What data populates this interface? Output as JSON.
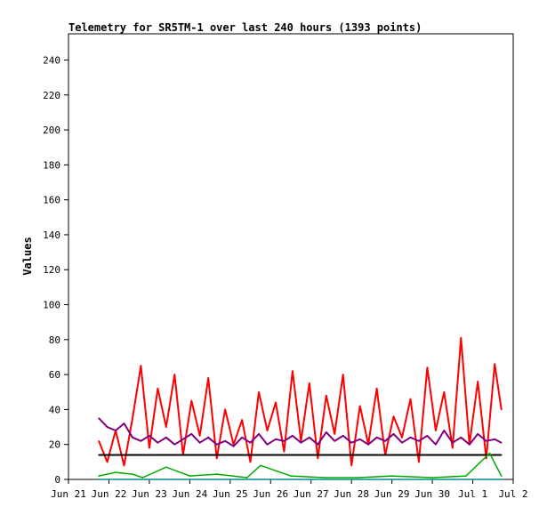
{
  "chart_data": {
    "type": "line",
    "title": "Telemetry for SR5TM-1 over last 240 hours (1393 points)",
    "xlabel": "",
    "ylabel": "Values",
    "ylim": [
      0,
      255
    ],
    "xlim": [
      "2024-06-21",
      "2024-07-02"
    ],
    "x_ticks": [
      "Jun 21",
      "Jun 22",
      "Jun 23",
      "Jun 24",
      "Jun 25",
      "Jun 26",
      "Jun 27",
      "Jun 28",
      "Jun 29",
      "Jun 30",
      "Jul 1",
      "Jul 2"
    ],
    "y_ticks": [
      0,
      20,
      40,
      60,
      80,
      100,
      120,
      140,
      160,
      180,
      200,
      220,
      240
    ],
    "grid": false,
    "legend": "none",
    "series": [
      {
        "color": "#ff0000",
        "x": [
          "2024-06-21T18:00",
          "2024-06-21T23:00",
          "2024-06-22T04:00",
          "2024-06-22T09:00",
          "2024-06-22T14:00",
          "2024-06-22T19:00",
          "2024-06-23T00:00",
          "2024-06-23T05:00",
          "2024-06-23T10:00",
          "2024-06-23T15:00",
          "2024-06-23T20:00",
          "2024-06-24T01:00",
          "2024-06-24T06:00",
          "2024-06-24T11:00",
          "2024-06-24T16:00",
          "2024-06-24T21:00",
          "2024-06-25T02:00",
          "2024-06-25T07:00",
          "2024-06-25T12:00",
          "2024-06-25T17:00",
          "2024-06-25T22:00",
          "2024-06-26T03:00",
          "2024-06-26T08:00",
          "2024-06-26T13:00",
          "2024-06-26T18:00",
          "2024-06-26T23:00",
          "2024-06-27T04:00",
          "2024-06-27T09:00",
          "2024-06-27T14:00",
          "2024-06-27T19:00",
          "2024-06-28T00:00",
          "2024-06-28T05:00",
          "2024-06-28T10:00",
          "2024-06-28T15:00",
          "2024-06-28T20:00",
          "2024-06-29T01:00",
          "2024-06-29T06:00",
          "2024-06-29T11:00",
          "2024-06-29T16:00",
          "2024-06-29T21:00",
          "2024-06-30T02:00",
          "2024-06-30T07:00",
          "2024-06-30T12:00",
          "2024-06-30T17:00",
          "2024-06-30T22:00",
          "2024-07-01T03:00",
          "2024-07-01T08:00",
          "2024-07-01T13:00",
          "2024-07-01T17:00"
        ],
        "y": [
          22,
          10,
          28,
          8,
          35,
          65,
          18,
          52,
          30,
          60,
          14,
          45,
          25,
          58,
          12,
          40,
          20,
          34,
          10,
          50,
          28,
          44,
          16,
          62,
          22,
          55,
          12,
          48,
          26,
          60,
          8,
          42,
          20,
          52,
          14,
          36,
          24,
          46,
          10,
          64,
          28,
          50,
          18,
          81,
          20,
          56,
          12,
          66,
          40
        ]
      },
      {
        "color": "#7f007f",
        "x": [
          "2024-06-21T18:00",
          "2024-06-21T23:00",
          "2024-06-22T04:00",
          "2024-06-22T09:00",
          "2024-06-22T14:00",
          "2024-06-22T19:00",
          "2024-06-23T00:00",
          "2024-06-23T05:00",
          "2024-06-23T10:00",
          "2024-06-23T15:00",
          "2024-06-23T20:00",
          "2024-06-24T01:00",
          "2024-06-24T06:00",
          "2024-06-24T11:00",
          "2024-06-24T16:00",
          "2024-06-24T21:00",
          "2024-06-25T02:00",
          "2024-06-25T07:00",
          "2024-06-25T12:00",
          "2024-06-25T17:00",
          "2024-06-25T22:00",
          "2024-06-26T03:00",
          "2024-06-26T08:00",
          "2024-06-26T13:00",
          "2024-06-26T18:00",
          "2024-06-26T23:00",
          "2024-06-27T04:00",
          "2024-06-27T09:00",
          "2024-06-27T14:00",
          "2024-06-27T19:00",
          "2024-06-28T00:00",
          "2024-06-28T05:00",
          "2024-06-28T10:00",
          "2024-06-28T15:00",
          "2024-06-28T20:00",
          "2024-06-29T01:00",
          "2024-06-29T06:00",
          "2024-06-29T11:00",
          "2024-06-29T16:00",
          "2024-06-29T21:00",
          "2024-06-30T02:00",
          "2024-06-30T07:00",
          "2024-06-30T12:00",
          "2024-06-30T17:00",
          "2024-06-30T22:00",
          "2024-07-01T03:00",
          "2024-07-01T08:00",
          "2024-07-01T13:00",
          "2024-07-01T17:00"
        ],
        "y": [
          35,
          30,
          28,
          32,
          24,
          22,
          25,
          21,
          24,
          20,
          23,
          26,
          21,
          24,
          20,
          22,
          19,
          24,
          21,
          26,
          20,
          23,
          22,
          25,
          21,
          24,
          20,
          27,
          22,
          25,
          21,
          23,
          20,
          24,
          22,
          26,
          21,
          24,
          22,
          25,
          20,
          28,
          21,
          24,
          20,
          26,
          22,
          23,
          21
        ]
      },
      {
        "color": "#000000",
        "x": [
          "2024-06-21T18:00",
          "2024-07-01T17:00"
        ],
        "y": [
          14,
          14
        ]
      },
      {
        "color": "#00aa00",
        "x": [
          "2024-06-21T18:00",
          "2024-06-22T04:00",
          "2024-06-22T14:00",
          "2024-06-22T20:00",
          "2024-06-23T10:00",
          "2024-06-24T00:00",
          "2024-06-24T16:00",
          "2024-06-25T10:00",
          "2024-06-25T18:00",
          "2024-06-26T12:00",
          "2024-06-27T08:00",
          "2024-06-28T04:00",
          "2024-06-29T00:00",
          "2024-06-30T00:00",
          "2024-06-30T20:00",
          "2024-07-01T10:00",
          "2024-07-01T17:00"
        ],
        "y": [
          2,
          4,
          3,
          1,
          7,
          2,
          3,
          1,
          8,
          2,
          1,
          1,
          2,
          1,
          2,
          15,
          2
        ]
      },
      {
        "color": "#008b8b",
        "x": [
          "2024-06-21T18:00",
          "2024-07-01T17:00"
        ],
        "y": [
          0,
          0
        ]
      }
    ]
  }
}
